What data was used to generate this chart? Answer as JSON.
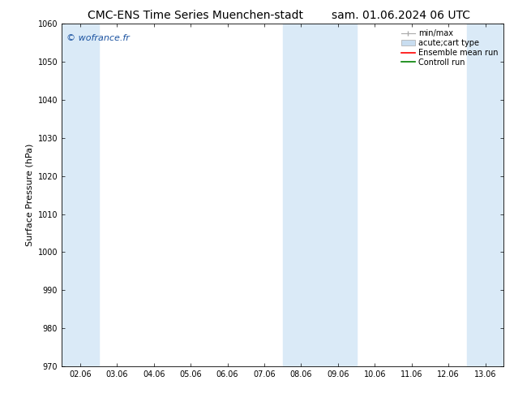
{
  "title_left": "CMC-ENS Time Series Muenchen-stadt",
  "title_right": "sam. 01.06.2024 06 UTC",
  "ylabel": "Surface Pressure (hPa)",
  "ylim": [
    970,
    1060
  ],
  "yticks": [
    970,
    980,
    990,
    1000,
    1010,
    1020,
    1030,
    1040,
    1050,
    1060
  ],
  "xtick_labels": [
    "02.06",
    "03.06",
    "04.06",
    "05.06",
    "06.06",
    "07.06",
    "08.06",
    "09.06",
    "10.06",
    "11.06",
    "12.06",
    "13.06"
  ],
  "xtick_positions": [
    0,
    1,
    2,
    3,
    4,
    5,
    6,
    7,
    8,
    9,
    10,
    11
  ],
  "xlim": [
    -0.5,
    11.5
  ],
  "shaded_bands": [
    {
      "x_start": -0.5,
      "x_end": 0.5
    },
    {
      "x_start": 5.5,
      "x_end": 7.5
    },
    {
      "x_start": 10.5,
      "x_end": 11.5
    }
  ],
  "band_color": "#daeaf7",
  "watermark": "© wofrance.fr",
  "watermark_color": "#1a52a0",
  "legend_entries": [
    {
      "label": "min/max",
      "type": "errorbar",
      "color": "#aaaaaa"
    },
    {
      "label": "acute;cart type",
      "type": "fill",
      "color": "#c8ddf0"
    },
    {
      "label": "Ensemble mean run",
      "type": "line",
      "color": "red"
    },
    {
      "label": "Controll run",
      "type": "line",
      "color": "green"
    }
  ],
  "background_color": "#ffffff",
  "title_fontsize": 10,
  "tick_fontsize": 7,
  "ylabel_fontsize": 8,
  "watermark_fontsize": 8,
  "legend_fontsize": 7
}
